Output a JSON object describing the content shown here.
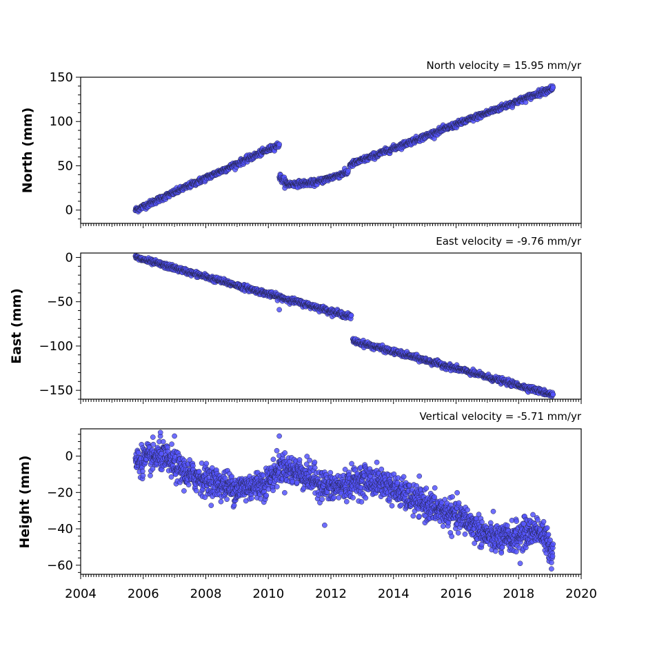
{
  "chart_data": [
    {
      "type": "scatter",
      "id": "north",
      "title": "North velocity = 15.95 mm/yr",
      "ylabel": "North (mm)",
      "xlabel": "",
      "xlim": [
        2004,
        2020
      ],
      "ylim": [
        -15,
        150
      ],
      "yticks": [
        0,
        50,
        100,
        150
      ],
      "ytick_labels": [
        "0",
        "50",
        "100",
        "150"
      ],
      "grid": false,
      "marker_color": "#5555ff",
      "marker_edge": "#222244",
      "segments": [
        {
          "t0": 2005.75,
          "t1": 2010.35,
          "y0": 0,
          "y1": 74,
          "noise": 1.6
        },
        {
          "t0": 2010.35,
          "t1": 2010.6,
          "y0": 38,
          "y1": 29,
          "noise": 2.0
        },
        {
          "t0": 2010.6,
          "t1": 2011.5,
          "y0": 29,
          "y1": 31,
          "noise": 1.6
        },
        {
          "t0": 2011.5,
          "t1": 2012.55,
          "y0": 31,
          "y1": 43,
          "noise": 1.6
        },
        {
          "t0": 2012.6,
          "t1": 2019.1,
          "y0": 51,
          "y1": 138,
          "noise": 1.6
        }
      ]
    },
    {
      "type": "scatter",
      "id": "east",
      "title": "East velocity = -9.76 mm/yr",
      "ylabel": "East (mm)",
      "xlabel": "",
      "xlim": [
        2004,
        2020
      ],
      "ylim": [
        -160,
        5
      ],
      "yticks": [
        0,
        -50,
        -100,
        -150
      ],
      "ytick_labels": [
        "0",
        "−50",
        "−100",
        "−150"
      ],
      "grid": false,
      "marker_color": "#5555ff",
      "marker_edge": "#222244",
      "segments": [
        {
          "t0": 2005.75,
          "t1": 2012.65,
          "y0": 0,
          "y1": -67,
          "noise": 1.5
        },
        {
          "t0": 2012.7,
          "t1": 2019.1,
          "y0": -94,
          "y1": -155,
          "noise": 1.5
        }
      ],
      "outliers": [
        {
          "x": 2010.35,
          "y": -59
        }
      ]
    },
    {
      "type": "scatter",
      "id": "height",
      "title": "Vertical velocity = -5.71 mm/yr",
      "ylabel": "Height (mm)",
      "xlabel": "",
      "xlim": [
        2004,
        2020
      ],
      "ylim": [
        -65,
        15
      ],
      "yticks": [
        0,
        -20,
        -40,
        -60
      ],
      "ytick_labels": [
        "0",
        "−20",
        "−40",
        "−60"
      ],
      "xticks": [
        2004,
        2006,
        2008,
        2010,
        2012,
        2014,
        2016,
        2018,
        2020
      ],
      "xtick_labels": [
        "2004",
        "2006",
        "2008",
        "2010",
        "2012",
        "2014",
        "2016",
        "2018",
        "2020"
      ],
      "grid": false,
      "marker_color": "#5555ff",
      "marker_edge": "#222244",
      "trend_knots": [
        {
          "x": 2005.75,
          "y": -3
        },
        {
          "x": 2006.6,
          "y": 0
        },
        {
          "x": 2007.4,
          "y": -10
        },
        {
          "x": 2009.0,
          "y": -18
        },
        {
          "x": 2009.9,
          "y": -15
        },
        {
          "x": 2010.4,
          "y": -6
        },
        {
          "x": 2011.0,
          "y": -9
        },
        {
          "x": 2012.0,
          "y": -18
        },
        {
          "x": 2013.0,
          "y": -13
        },
        {
          "x": 2013.7,
          "y": -15
        },
        {
          "x": 2014.5,
          "y": -23
        },
        {
          "x": 2015.5,
          "y": -30
        },
        {
          "x": 2016.3,
          "y": -35
        },
        {
          "x": 2017.0,
          "y": -44
        },
        {
          "x": 2017.5,
          "y": -46
        },
        {
          "x": 2018.0,
          "y": -44
        },
        {
          "x": 2018.6,
          "y": -40
        },
        {
          "x": 2019.1,
          "y": -52
        }
      ],
      "noise": 4.0,
      "outliers": [
        {
          "x": 2006.55,
          "y": 13
        },
        {
          "x": 2007.0,
          "y": 11
        },
        {
          "x": 2010.35,
          "y": 11
        },
        {
          "x": 2011.8,
          "y": -38
        },
        {
          "x": 2019.05,
          "y": -62
        },
        {
          "x": 2018.05,
          "y": -59
        }
      ]
    }
  ],
  "samples_per_year": 110
}
